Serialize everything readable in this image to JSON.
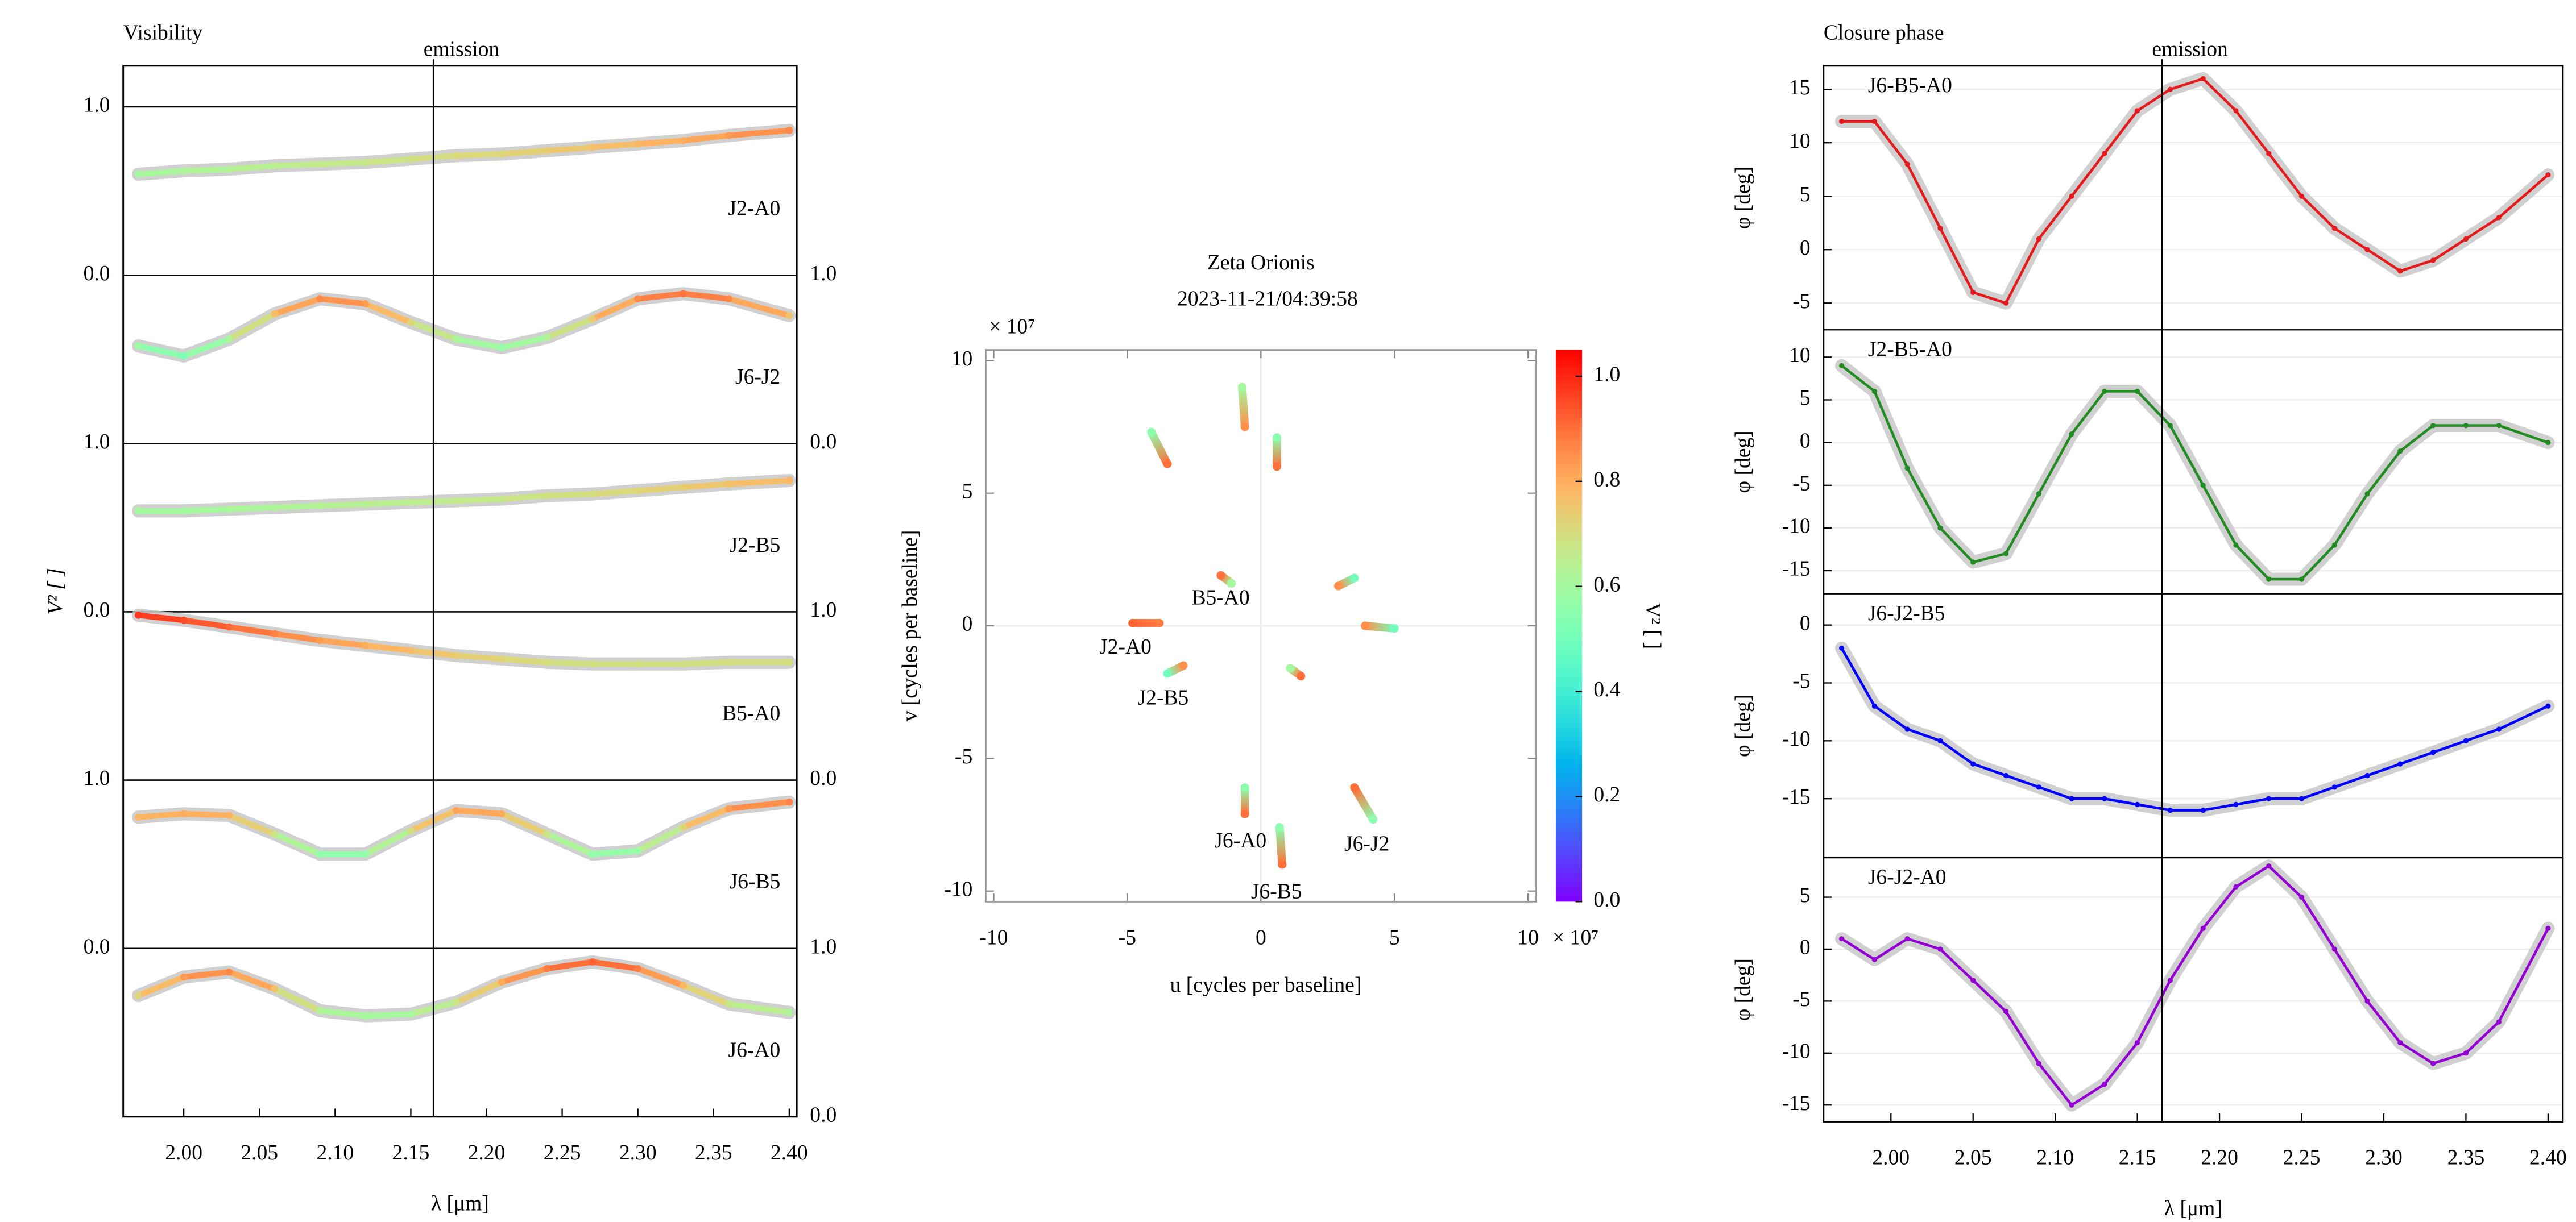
{
  "chart_data": [
    {
      "type": "line",
      "title": "Visibility",
      "xlabel": "λ [μm]",
      "ylabel": "V² [ ]",
      "annotation": {
        "text": "emission",
        "x": 2.165
      },
      "xlim": [
        1.96,
        2.405
      ],
      "xticks": [
        {
          "value": 2,
          "label": "2.00"
        },
        2.05,
        {
          "value": 2.1,
          "label": "2.10"
        },
        2.15,
        {
          "value": 2.2,
          "label": "2.20"
        },
        2.25,
        {
          "value": 2.3,
          "label": "2.30"
        },
        2.35,
        {
          "value": 2.4,
          "label": "2.40"
        }
      ],
      "x": [
        1.97,
        2.0,
        2.03,
        2.06,
        2.09,
        2.12,
        2.15,
        2.18,
        2.21,
        2.24,
        2.27,
        2.3,
        2.33,
        2.36,
        2.4
      ],
      "series": [
        {
          "name": "J2-A0",
          "color": "#b22222",
          "side": "left",
          "ylim": [
            0,
            1
          ],
          "yticks": [
            {
              "value": 0,
              "label": "0.0"
            },
            {
              "value": 1,
              "label": "1.0"
            }
          ],
          "values": [
            0.6,
            0.62,
            0.63,
            0.65,
            0.66,
            0.67,
            0.69,
            0.71,
            0.72,
            0.74,
            0.76,
            0.78,
            0.8,
            0.83,
            0.86
          ]
        },
        {
          "name": "J6-J2",
          "color": "#000000",
          "side": "right",
          "ylim": [
            0,
            1
          ],
          "yticks": [
            {
              "value": 0,
              "label": "0.0"
            },
            {
              "value": 1,
              "label": "1.0"
            }
          ],
          "values": [
            0.58,
            0.52,
            0.62,
            0.77,
            0.86,
            0.83,
            0.72,
            0.62,
            0.57,
            0.63,
            0.74,
            0.86,
            0.89,
            0.86,
            0.76
          ]
        },
        {
          "name": "J2-B5",
          "color": "#e41a1c",
          "side": "left",
          "ylim": [
            0,
            1
          ],
          "yticks": [
            {
              "value": 0,
              "label": "0.0"
            },
            {
              "value": 1,
              "label": "1.0"
            }
          ],
          "values": [
            0.6,
            0.6,
            0.61,
            0.62,
            0.63,
            0.64,
            0.65,
            0.66,
            0.67,
            0.69,
            0.7,
            0.72,
            0.74,
            0.76,
            0.78
          ]
        },
        {
          "name": "B5-A0",
          "color": "#228b22",
          "side": "right",
          "ylim": [
            0,
            1
          ],
          "yticks": [
            {
              "value": 0,
              "label": "0.0"
            },
            {
              "value": 1,
              "label": "1.0"
            }
          ],
          "values": [
            0.98,
            0.95,
            0.91,
            0.87,
            0.83,
            0.8,
            0.77,
            0.74,
            0.72,
            0.7,
            0.69,
            0.69,
            0.69,
            0.7,
            0.7
          ]
        },
        {
          "name": "J6-B5",
          "color": "#0000ff",
          "side": "left",
          "ylim": [
            0,
            1
          ],
          "yticks": [
            {
              "value": 0,
              "label": "0.0"
            },
            {
              "value": 1,
              "label": "1.0"
            }
          ],
          "values": [
            0.78,
            0.8,
            0.79,
            0.68,
            0.56,
            0.56,
            0.7,
            0.82,
            0.8,
            0.68,
            0.56,
            0.58,
            0.72,
            0.83,
            0.87
          ]
        },
        {
          "name": "J6-A0",
          "color": "#9400d3",
          "side": "right",
          "ylim": [
            0,
            1
          ],
          "yticks": [
            {
              "value": 0,
              "label": "0.0"
            },
            {
              "value": 1,
              "label": "1.0"
            }
          ],
          "values": [
            0.72,
            0.83,
            0.86,
            0.76,
            0.63,
            0.6,
            0.61,
            0.68,
            0.8,
            0.88,
            0.92,
            0.88,
            0.78,
            0.67,
            0.62
          ]
        }
      ]
    },
    {
      "type": "scatter",
      "title": "Zeta Orionis",
      "subtitle": "2023-11-21/04:39:58",
      "xlabel": "u [cycles per baseline]",
      "ylabel": "v [cycles per baseline]",
      "x_scale_label": "× 10⁷",
      "y_scale_label": "× 10⁷",
      "xlim": [
        -10.3,
        10.3
      ],
      "ylim": [
        -10.4,
        10.4
      ],
      "xticks": [
        -10,
        -5,
        0,
        5,
        10
      ],
      "yticks": [
        -10,
        -5,
        0,
        5,
        10
      ],
      "zero_lines": true,
      "colormap": "rainbow",
      "colorbar": {
        "label": "V² [ ]",
        "lim": [
          0,
          1.05
        ],
        "ticks": [
          {
            "value": 0,
            "label": "0.0"
          },
          0.2,
          0.4,
          0.6,
          0.8,
          {
            "value": 1,
            "label": "1.0"
          }
        ]
      },
      "series": [
        {
          "name": "J2-A0",
          "color": "#b22222",
          "x": [
            -4.8,
            -3.8,
            3.9,
            5.0
          ],
          "y": [
            0.1,
            0.1,
            0.0,
            -0.1
          ],
          "values": [
            0.92,
            0.88,
            0.85,
            0.5
          ]
        },
        {
          "name": "J2-B5",
          "color": "#e41a1c",
          "x": [
            -3.5,
            -2.9,
            2.9,
            3.5
          ],
          "y": [
            -1.8,
            -1.5,
            1.5,
            1.8
          ],
          "values": [
            0.5,
            0.85,
            0.85,
            0.5
          ]
        },
        {
          "name": "B5-A0",
          "color": "#228b22",
          "x": [
            -1.5,
            -1.1,
            1.1,
            1.5
          ],
          "y": [
            1.9,
            1.6,
            -1.6,
            -1.9
          ],
          "values": [
            0.9,
            0.6,
            0.6,
            0.9
          ]
        },
        {
          "name": "J6-A0",
          "color": "#9400d3",
          "x": [
            -0.6,
            -0.6,
            0.6,
            0.6
          ],
          "y": [
            -6.1,
            -7.1,
            7.1,
            6.0
          ],
          "values": [
            0.55,
            0.9,
            0.55,
            0.9
          ]
        },
        {
          "name": "J6-J2",
          "color": "#000000",
          "x": [
            3.5,
            4.2,
            -4.1,
            -3.5
          ],
          "y": [
            -6.1,
            -7.3,
            7.3,
            6.1
          ],
          "values": [
            0.9,
            0.55,
            0.55,
            0.9
          ]
        },
        {
          "name": "J6-B5",
          "color": "#0000ff",
          "x": [
            0.7,
            0.8,
            -0.7,
            -0.6
          ],
          "y": [
            -7.6,
            -9.0,
            9.0,
            7.5
          ],
          "values": [
            0.55,
            0.9,
            0.6,
            0.85
          ]
        }
      ]
    },
    {
      "type": "line",
      "title": "Closure phase",
      "xlabel": "λ [μm]",
      "annotation": {
        "text": "emission",
        "x": 2.165
      },
      "xlim": [
        1.959,
        2.409
      ],
      "grid": true,
      "xticks": [
        {
          "value": 2,
          "label": "2.00"
        },
        2.05,
        {
          "value": 2.1,
          "label": "2.10"
        },
        2.15,
        {
          "value": 2.2,
          "label": "2.20"
        },
        2.25,
        {
          "value": 2.3,
          "label": "2.30"
        },
        2.35,
        {
          "value": 2.4,
          "label": "2.40"
        }
      ],
      "x": [
        1.97,
        1.99,
        2.01,
        2.03,
        2.05,
        2.07,
        2.09,
        2.11,
        2.13,
        2.15,
        2.17,
        2.19,
        2.21,
        2.23,
        2.25,
        2.27,
        2.29,
        2.31,
        2.33,
        2.35,
        2.37,
        2.4
      ],
      "series": [
        {
          "name": "J6-B5-A0",
          "color": "#e41a1c",
          "ylabel": "φ [deg]",
          "ylim": [
            -7.5,
            17.2
          ],
          "yticks": [
            -5,
            0,
            5,
            10,
            15
          ],
          "values": [
            12,
            12,
            8,
            2,
            -4,
            -5,
            1,
            5,
            9,
            13,
            15,
            16,
            13,
            9,
            5,
            2,
            0,
            -2,
            -1,
            1,
            3,
            7
          ]
        },
        {
          "name": "J2-B5-A0",
          "color": "#228b22",
          "ylabel": "φ [deg]",
          "ylim": [
            -17.7,
            13.2
          ],
          "yticks": [
            -15,
            -10,
            -5,
            0,
            5,
            10
          ],
          "values": [
            9,
            6,
            -3,
            -10,
            -14,
            -13,
            -6,
            1,
            6,
            6,
            2,
            -5,
            -12,
            -16,
            -16,
            -12,
            -6,
            -1,
            2,
            2,
            2,
            0
          ]
        },
        {
          "name": "J6-J2-B5",
          "color": "#0000ff",
          "ylabel": "φ [deg]",
          "ylim": [
            -20.1,
            2.7
          ],
          "yticks": [
            -15,
            -10,
            -5,
            0
          ],
          "values": [
            -2,
            -7,
            -9,
            -10,
            -12,
            -13,
            -14,
            -15,
            -15,
            -15.5,
            -16,
            -16,
            -15.5,
            -15,
            -15,
            -14,
            -13,
            -12,
            -11,
            -10,
            -9,
            -7
          ]
        },
        {
          "name": "J6-J2-A0",
          "color": "#9400d3",
          "ylabel": "φ [deg]",
          "ylim": [
            -16.6,
            8.8
          ],
          "yticks": [
            -15,
            -10,
            -5,
            0,
            5
          ],
          "values": [
            1,
            -1,
            1,
            0,
            -3,
            -6,
            -11,
            -15,
            -13,
            -9,
            -3,
            2,
            6,
            8,
            5,
            0,
            -5,
            -9,
            -11,
            -10,
            -7,
            2
          ]
        }
      ]
    }
  ]
}
